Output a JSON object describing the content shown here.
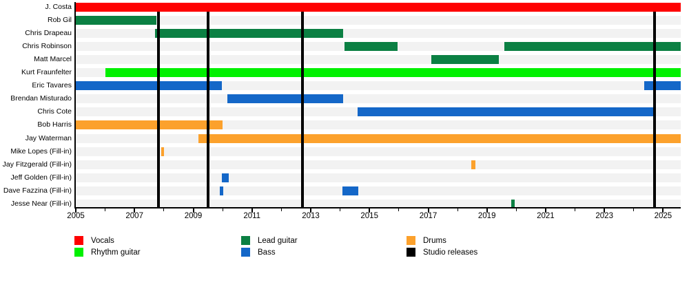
{
  "chart_data": {
    "type": "gantt",
    "description": "Band members timeline with studio release markers",
    "x_axis": {
      "min": 2005,
      "max": 2025.6,
      "tick_interval": 1,
      "label_interval": 2,
      "tick_labels": [
        "2005",
        "2007",
        "2009",
        "2011",
        "2013",
        "2015",
        "2017",
        "2019",
        "2021",
        "2023",
        "2025"
      ]
    },
    "colors": {
      "vocals": "#fe0000",
      "rhythm_guitar": "#00f000",
      "lead_guitar": "#0b8043",
      "bass": "#1467c8",
      "drums": "#fca12c",
      "studio_releases": "#000000",
      "row_band": "#f2f2f2"
    },
    "members": [
      {
        "name": "J. Costa",
        "role": "vocals",
        "stints": [
          [
            2005.0,
            2025.6
          ]
        ]
      },
      {
        "name": "Rob Gil",
        "role": "lead_guitar",
        "stints": [
          [
            2005.0,
            2007.74
          ]
        ]
      },
      {
        "name": "Chris Drapeau",
        "role": "lead_guitar",
        "stints": [
          [
            2007.7,
            2014.1
          ]
        ]
      },
      {
        "name": "Chris Robinson",
        "role": "lead_guitar",
        "stints": [
          [
            2014.15,
            2015.95
          ],
          [
            2019.6,
            2025.6
          ]
        ]
      },
      {
        "name": "Matt Marcel",
        "role": "lead_guitar",
        "stints": [
          [
            2017.1,
            2019.4
          ]
        ]
      },
      {
        "name": "Kurt Fraunfelter",
        "role": "rhythm_guitar",
        "stints": [
          [
            2006.0,
            2025.6
          ]
        ]
      },
      {
        "name": "Eric Tavares",
        "role": "bass",
        "stints": [
          [
            2005.0,
            2009.97
          ],
          [
            2024.35,
            2025.6
          ]
        ]
      },
      {
        "name": "Brendan Misturado",
        "role": "bass",
        "stints": [
          [
            2010.16,
            2014.1
          ]
        ]
      },
      {
        "name": "Chris Cote",
        "role": "bass",
        "stints": [
          [
            2014.6,
            2024.7
          ]
        ]
      },
      {
        "name": "Bob Harris",
        "role": "drums",
        "stints": [
          [
            2005.0,
            2010.0
          ]
        ]
      },
      {
        "name": "Jay Waterman",
        "role": "drums",
        "stints": [
          [
            2009.17,
            2025.6
          ]
        ]
      },
      {
        "name": "Mike Lopes (Fill-in)",
        "role": "drums",
        "stints": [
          [
            2007.9,
            2008.0
          ]
        ]
      },
      {
        "name": "Jay Fitzgerald (Fill-in)",
        "role": "drums",
        "stints": [
          [
            2018.47,
            2018.62
          ]
        ]
      },
      {
        "name": "Jeff Golden (Fill-in)",
        "role": "bass",
        "stints": [
          [
            2009.97,
            2010.21
          ]
        ]
      },
      {
        "name": "Dave Fazzina (Fill-in)",
        "role": "bass",
        "stints": [
          [
            2009.9,
            2010.02
          ],
          [
            2014.07,
            2014.63
          ]
        ]
      },
      {
        "name": "Jesse Near (Fill-in)",
        "role": "lead_guitar",
        "stints": [
          [
            2019.82,
            2019.94
          ]
        ]
      }
    ],
    "studio_releases": [
      2007.82,
      2009.5,
      2012.72,
      2024.71
    ],
    "legend": [
      {
        "label": "Vocals",
        "color_key": "vocals"
      },
      {
        "label": "Rhythm guitar",
        "color_key": "rhythm_guitar"
      },
      {
        "label": "Lead guitar",
        "color_key": "lead_guitar"
      },
      {
        "label": "Bass",
        "color_key": "bass"
      },
      {
        "label": "Drums",
        "color_key": "drums"
      },
      {
        "label": "Studio releases",
        "color_key": "studio_releases"
      }
    ]
  }
}
